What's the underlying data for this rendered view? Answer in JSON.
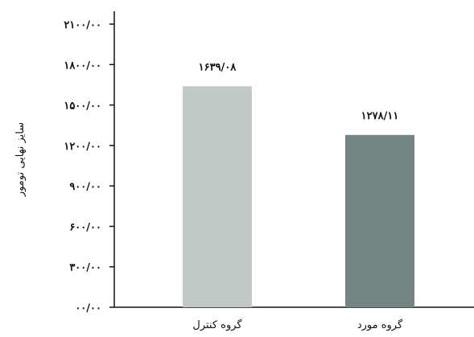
{
  "chart_data": {
    "type": "bar",
    "categories": [
      "گروه کنترل",
      "گروه مورد"
    ],
    "values": [
      1639.08,
      1278.11
    ],
    "data_labels": [
      "۱۶۳۹/۰۸",
      "۱۲۷۸/۱۱"
    ],
    "bar_colors": [
      "#c1c9c8",
      "#748383"
    ],
    "ylabel": "سایز نهایی تومور",
    "ylim": [
      0,
      2100
    ],
    "yticks": [
      0,
      300,
      600,
      900,
      1200,
      1500,
      1800,
      2100
    ],
    "ytick_labels": [
      "۰۰/۰۰",
      "۳۰۰/۰۰",
      "۶۰۰/۰۰",
      "۹۰۰/۰۰",
      "۱۲۰۰/۰۰",
      "۱۵۰۰/۰۰",
      "۱۸۰۰/۰۰",
      "۲۱۰۰/۰۰"
    ],
    "grid": false,
    "legend": "none"
  }
}
